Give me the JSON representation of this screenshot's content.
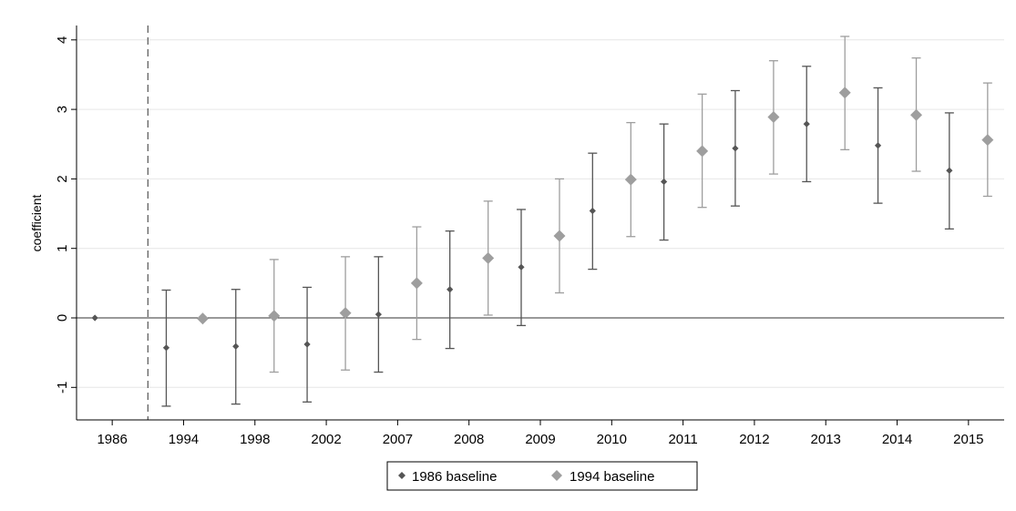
{
  "chart_data": {
    "type": "scatter",
    "title": "",
    "xlabel": "",
    "ylabel": "coefficient",
    "categories": [
      "1986",
      "1994",
      "1998",
      "2002",
      "2007",
      "2008",
      "2009",
      "2010",
      "2011",
      "2012",
      "2013",
      "2014",
      "2015"
    ],
    "ylim": [
      -1.45,
      4.2
    ],
    "yticks": [
      -1,
      0,
      1,
      2,
      3,
      4
    ],
    "ytick_labels": [
      "-1",
      "0",
      "1",
      "2",
      "3",
      "4"
    ],
    "grid": "horizontal",
    "reference_line_y": 0,
    "dashed_vline_between": [
      "1986",
      "1994"
    ],
    "series": [
      {
        "name": "1986 baseline",
        "color": "#555555",
        "marker": "small-diamond",
        "values": [
          0,
          -0.43,
          -0.41,
          -0.38,
          0.05,
          0.41,
          0.73,
          1.54,
          1.96,
          2.44,
          2.79,
          2.48,
          2.12
        ],
        "ci_low": [
          null,
          -1.27,
          -1.24,
          -1.21,
          -0.78,
          -0.44,
          -0.11,
          0.7,
          1.12,
          1.61,
          1.96,
          1.65,
          1.28
        ],
        "ci_high": [
          null,
          0.4,
          0.41,
          0.44,
          0.88,
          1.25,
          1.56,
          2.37,
          2.79,
          3.27,
          3.62,
          3.31,
          2.95
        ]
      },
      {
        "name": "1994 baseline",
        "color": "#9e9e9e",
        "marker": "large-diamond",
        "values": [
          null,
          -0.01,
          0.03,
          0.07,
          0.5,
          0.86,
          1.18,
          1.99,
          2.4,
          2.89,
          3.24,
          2.92,
          2.56
        ],
        "ci_low": [
          null,
          null,
          -0.78,
          -0.75,
          -0.31,
          0.04,
          0.36,
          1.17,
          1.59,
          2.07,
          2.42,
          2.11,
          1.75
        ],
        "ci_high": [
          null,
          null,
          0.84,
          0.88,
          1.31,
          1.68,
          2.0,
          2.81,
          3.22,
          3.7,
          4.05,
          3.74,
          3.38
        ]
      }
    ],
    "legend": {
      "position": "bottom-center",
      "entries": [
        "1986 baseline",
        "1994 baseline"
      ]
    }
  }
}
